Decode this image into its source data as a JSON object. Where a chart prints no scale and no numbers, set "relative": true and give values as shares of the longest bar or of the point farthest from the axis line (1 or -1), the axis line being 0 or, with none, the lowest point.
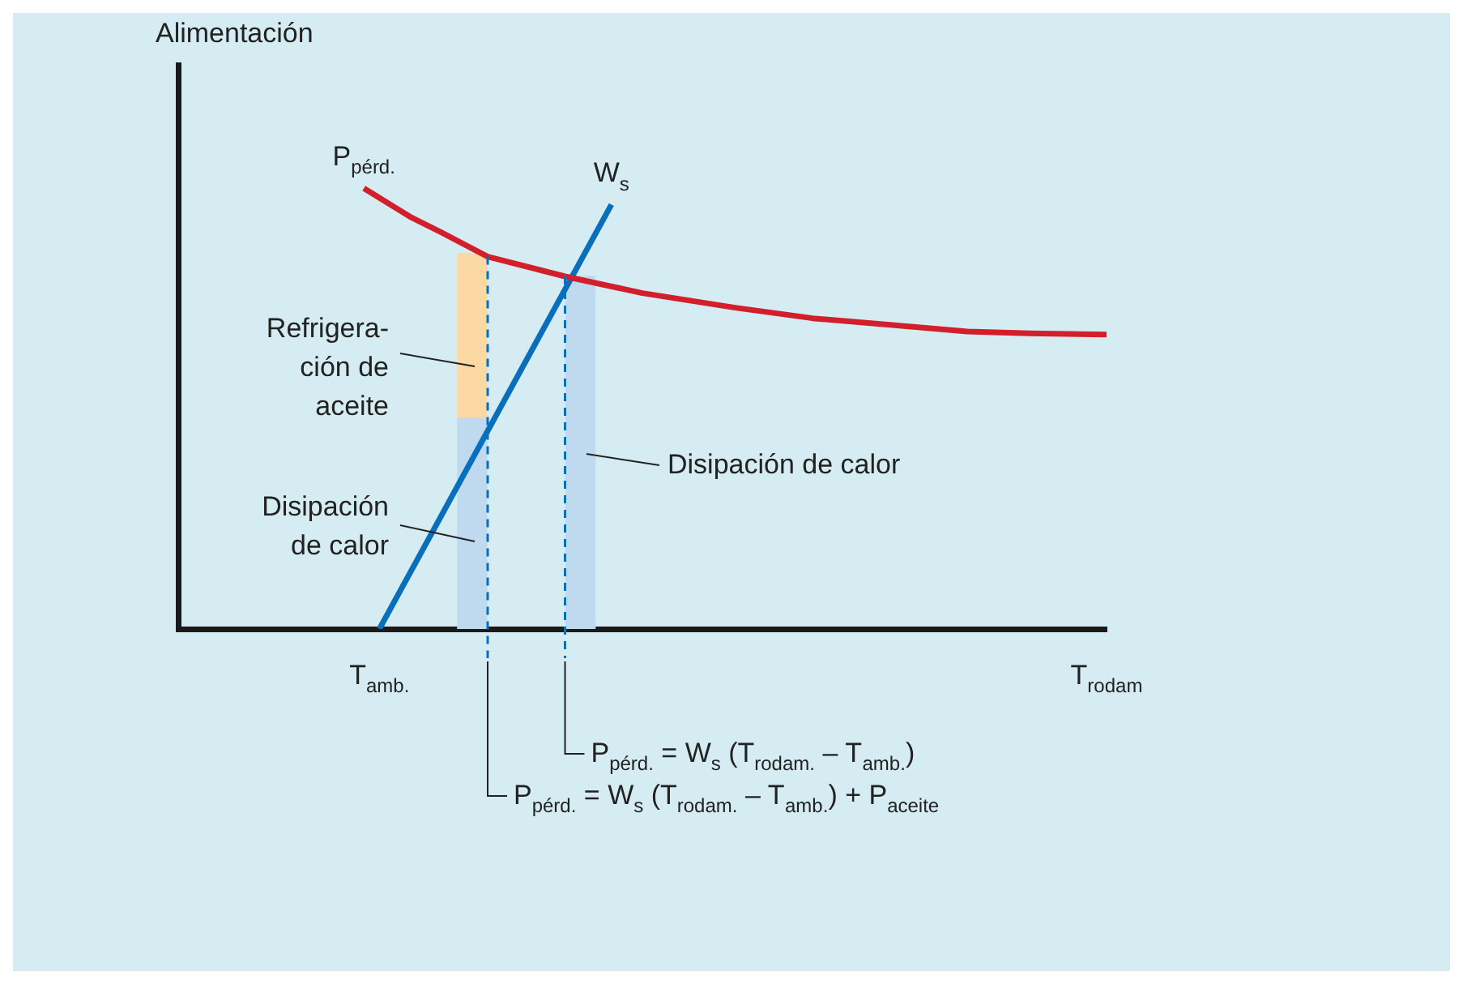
{
  "chart_data": {
    "type": "line",
    "relative": true,
    "ylabel": "Alimentación",
    "categories": [
      null,
      null,
      null,
      null,
      null,
      null,
      null,
      null,
      null,
      null,
      null,
      null,
      null,
      "T$_{amb.}$",
      null,
      null,
      null,
      null,
      null,
      null,
      null,
      null,
      null,
      null,
      null,
      null,
      null,
      null,
      null,
      null,
      null,
      null,
      null,
      null,
      null,
      null,
      null,
      null,
      null,
      null,
      null,
      null,
      null,
      null,
      null,
      null,
      null,
      null,
      null,
      null,
      null,
      null,
      null,
      null,
      null,
      null,
      null,
      null,
      null,
      null,
      "T$_{rodam}$"
    ],
    "ylim": [
      0,
      1.28
    ],
    "tick_labels": "x",
    "grid": false,
    "legend": false,
    "marker": "none",
    "stacked": true,
    "series": [
      {
        "name": "P$_{pérd.}$",
        "color": "#d31f2c",
        "values": [
          null,
          null,
          null,
          null,
          null,
          null,
          null,
          null,
          null,
          null,
          null,
          null,
          1,
          null,
          null,
          0.935,
          null,
          0.9,
          null,
          null,
          0.845,
          null,
          null,
          null,
          null,
          0.8,
          null,
          null,
          null,
          null,
          0.762,
          null,
          null,
          null,
          null,
          null,
          0.729,
          null,
          null,
          null,
          null,
          0.705,
          null,
          null,
          null,
          null,
          0.69,
          null,
          null,
          null,
          null,
          0.675,
          null,
          null,
          null,
          0.671,
          null,
          null,
          null,
          null,
          0.668
        ]
      },
      {
        "name": "W$_{s}$",
        "color": "#0a6fba",
        "values": [
          null,
          null,
          null,
          null,
          null,
          null,
          null,
          null,
          null,
          null,
          null,
          null,
          null,
          0,
          null,
          null,
          null,
          null,
          null,
          null,
          null,
          null,
          null,
          null,
          null,
          null,
          null,
          null,
          0.963,
          null,
          null,
          null,
          null,
          null,
          null,
          null,
          null,
          null,
          null,
          null,
          null,
          null,
          null,
          null,
          null,
          null,
          null,
          null,
          null,
          null,
          null,
          null,
          null,
          null,
          null,
          null,
          null,
          null,
          null,
          null,
          null
        ]
      },
      {
        "type": "bar",
        "color": "#bfdaef",
        "values": [
          null,
          null,
          null,
          null,
          null,
          null,
          null,
          null,
          null,
          null,
          null,
          null,
          null,
          null,
          null,
          null,
          null,
          null,
          null,
          0.478,
          null,
          null,
          null,
          null,
          null,
          null,
          0.8,
          null,
          null,
          null,
          null,
          null,
          null,
          null,
          null,
          null,
          null,
          null,
          null,
          null,
          null,
          null,
          null,
          null,
          null,
          null,
          null,
          null,
          null,
          null,
          null,
          null,
          null,
          null,
          null,
          null,
          null,
          null,
          null,
          null,
          null
        ]
      },
      {
        "type": "bar",
        "color": "#fcd9a2",
        "values": [
          null,
          null,
          null,
          null,
          null,
          null,
          null,
          null,
          null,
          null,
          null,
          null,
          null,
          null,
          null,
          null,
          null,
          null,
          null,
          0.374,
          null,
          null,
          null,
          null,
          null,
          null,
          null,
          null,
          null,
          null,
          null,
          null,
          null,
          null,
          null,
          null,
          null,
          null,
          null,
          null,
          null,
          null,
          null,
          null,
          null,
          null,
          null,
          null,
          null,
          null,
          null,
          null,
          null,
          null,
          null,
          null,
          null,
          null,
          null,
          null,
          null
        ]
      }
    ],
    "annotations": [
      "Refrigera-\nción de\naceite",
      "Disipación\nde calor",
      "Disipación de calor",
      "P$_{pérd.}$ = W$_{s}$ (T$_{rodam.}$ – T$_{amb.}$)",
      "P$_{pérd.}$ = W$_{s}$ (T$_{rodam.}$ – T$_{amb.}$) + P$_{aceite}$"
    ]
  }
}
